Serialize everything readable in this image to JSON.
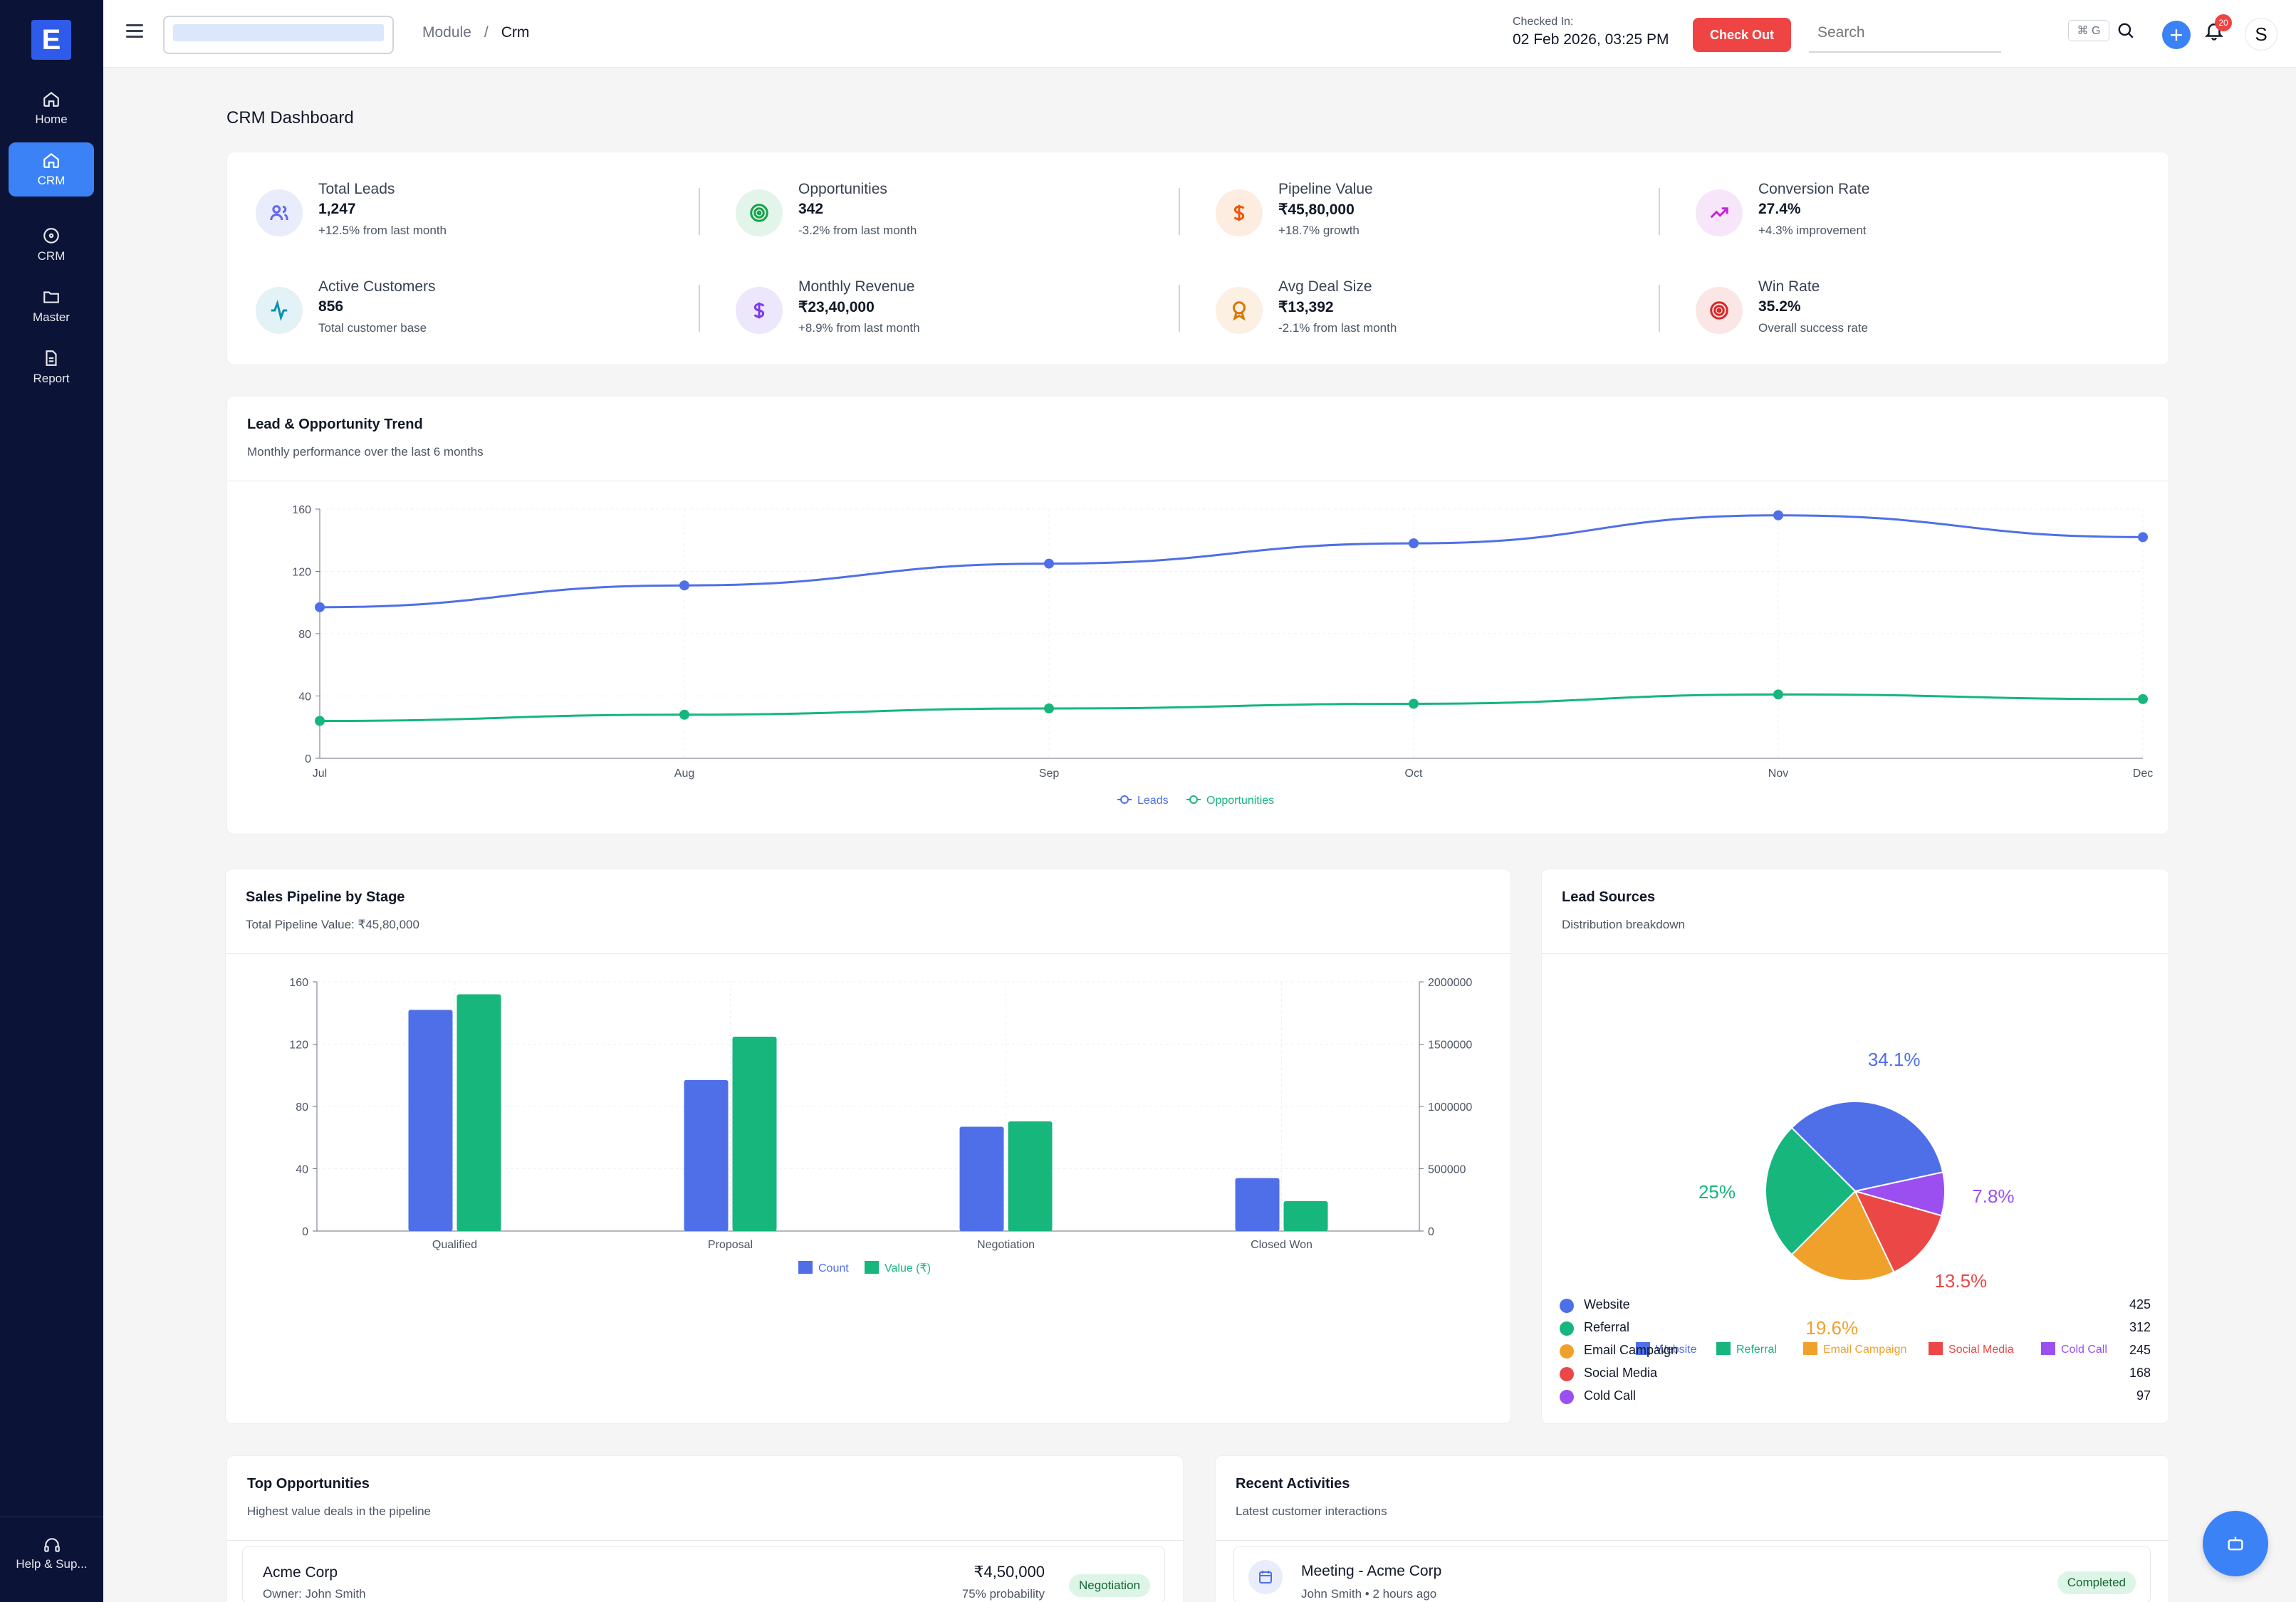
{
  "sidebar": {
    "logo_letter": "E",
    "items": [
      {
        "label": "Home",
        "icon": "home-icon"
      },
      {
        "label": "CRM",
        "icon": "home-icon"
      },
      {
        "label": "CRM",
        "icon": "circle-icon"
      },
      {
        "label": "Master",
        "icon": "folder-icon"
      },
      {
        "label": "Report",
        "icon": "document-icon"
      }
    ],
    "help_label": "Help & Sup..."
  },
  "topbar": {
    "breadcrumb": [
      "Module",
      "Crm"
    ],
    "checked_in_label": "Checked In:",
    "checked_in_value": "02 Feb 2026, 03:25 PM",
    "checkout_label": "Check Out",
    "search_placeholder": "Search",
    "shortcut": "⌘ G",
    "notification_count": "20",
    "avatar_letter": "S"
  },
  "page_title": "CRM Dashboard",
  "stats": [
    {
      "label": "Total Leads",
      "value": "1,247",
      "sub": "+12.5% from last month",
      "icon": "users-icon",
      "color": "#6366f1",
      "bg": "#e8ecfb"
    },
    {
      "label": "Opportunities",
      "value": "342",
      "sub": "-3.2% from last month",
      "icon": "target-icon",
      "color": "#16a34a",
      "bg": "#e3f5ea"
    },
    {
      "label": "Pipeline Value",
      "value": "₹45,80,000",
      "sub": "+18.7% growth",
      "icon": "dollar-icon",
      "color": "#ea580c",
      "bg": "#fdece0"
    },
    {
      "label": "Conversion Rate",
      "value": "27.4%",
      "sub": "+4.3% improvement",
      "icon": "trending-up-icon",
      "color": "#c026d3",
      "bg": "#f7e6f9"
    },
    {
      "label": "Active Customers",
      "value": "856",
      "sub": "Total customer base",
      "icon": "activity-icon",
      "color": "#0891b2",
      "bg": "#e2f2f6"
    },
    {
      "label": "Monthly Revenue",
      "value": "₹23,40,000",
      "sub": "+8.9% from last month",
      "icon": "dollar-icon",
      "color": "#7c3aed",
      "bg": "#ece7fb"
    },
    {
      "label": "Avg Deal Size",
      "value": "₹13,392",
      "sub": "-2.1% from last month",
      "icon": "award-icon",
      "color": "#d97706",
      "bg": "#fbf0e2"
    },
    {
      "label": "Win Rate",
      "value": "35.2%",
      "sub": "Overall success rate",
      "icon": "target-icon",
      "color": "#dc2626",
      "bg": "#fbe6e6"
    }
  ],
  "trend": {
    "title": "Lead & Opportunity Trend",
    "subtitle": "Monthly performance over the last 6 months"
  },
  "pipeline": {
    "title": "Sales Pipeline by Stage",
    "subtitle": "Total Pipeline Value: ₹45,80,000"
  },
  "sources": {
    "title": "Lead Sources",
    "subtitle": "Distribution breakdown",
    "list": [
      {
        "name": "Website",
        "count": "425",
        "color": "#4f6fe8"
      },
      {
        "name": "Referral",
        "count": "312",
        "color": "#16b67c"
      },
      {
        "name": "Email Campaign",
        "count": "245",
        "color": "#f0a12c"
      },
      {
        "name": "Social Media",
        "count": "168",
        "color": "#ec4747"
      },
      {
        "name": "Cold Call",
        "count": "97",
        "color": "#9b4ff0"
      }
    ]
  },
  "top_opps": {
    "title": "Top Opportunities",
    "subtitle": "Highest value deals in the pipeline",
    "first": {
      "company": "Acme Corp",
      "owner": "Owner: John Smith",
      "amount": "₹4,50,000",
      "probability": "75% probability",
      "stage": "Negotiation"
    }
  },
  "activities": {
    "title": "Recent Activities",
    "subtitle": "Latest customer interactions",
    "first": {
      "title": "Meeting - Acme Corp",
      "meta": "John Smith • 2 hours ago",
      "status": "Completed"
    }
  },
  "chart_data": [
    {
      "type": "line",
      "x": [
        "Jul",
        "Aug",
        "Sep",
        "Oct",
        "Nov",
        "Dec"
      ],
      "series": [
        {
          "name": "Leads",
          "values": [
            97,
            111,
            125,
            138,
            156,
            142
          ],
          "color": "#4f6fe8"
        },
        {
          "name": "Opportunities",
          "values": [
            24,
            28,
            32,
            35,
            41,
            38
          ],
          "color": "#16b67c"
        }
      ],
      "yticks": [
        0,
        40,
        80,
        120,
        160
      ],
      "ylim": [
        0,
        160
      ],
      "grid": true,
      "legend": "bottom"
    },
    {
      "type": "bar",
      "categories": [
        "Qualified",
        "Proposal",
        "Negotiation",
        "Closed Won"
      ],
      "series": [
        {
          "name": "Count",
          "values": [
            142,
            97,
            67,
            34
          ],
          "color": "#4f6fe8",
          "axis": "left"
        },
        {
          "name": "Value (₹)",
          "values": [
            1900000,
            1560000,
            880000,
            240000
          ],
          "color": "#16b67c",
          "axis": "right"
        }
      ],
      "yticks_left": [
        0,
        40,
        80,
        120,
        160
      ],
      "ylim_left": [
        0,
        160
      ],
      "yticks_right": [
        0,
        500000,
        1000000,
        1500000,
        2000000
      ],
      "ylim_right": [
        0,
        2000000
      ],
      "grid": true,
      "legend": "bottom"
    },
    {
      "type": "pie",
      "slices": [
        {
          "name": "Website",
          "value": 34.1,
          "label": "34.1%",
          "color": "#4f6fe8"
        },
        {
          "name": "Cold Call",
          "value": 7.8,
          "label": "7.8%",
          "color": "#9b4ff0"
        },
        {
          "name": "Social Media",
          "value": 13.5,
          "label": "13.5%",
          "color": "#ec4747"
        },
        {
          "name": "Email Campaign",
          "value": 19.6,
          "label": "19.6%",
          "color": "#f0a12c"
        },
        {
          "name": "Referral",
          "value": 25,
          "label": "25%",
          "color": "#16b67c"
        }
      ],
      "legend_order": [
        "Website",
        "Referral",
        "Email Campaign",
        "Social Media",
        "Cold Call"
      ],
      "legend": "bottom"
    }
  ]
}
